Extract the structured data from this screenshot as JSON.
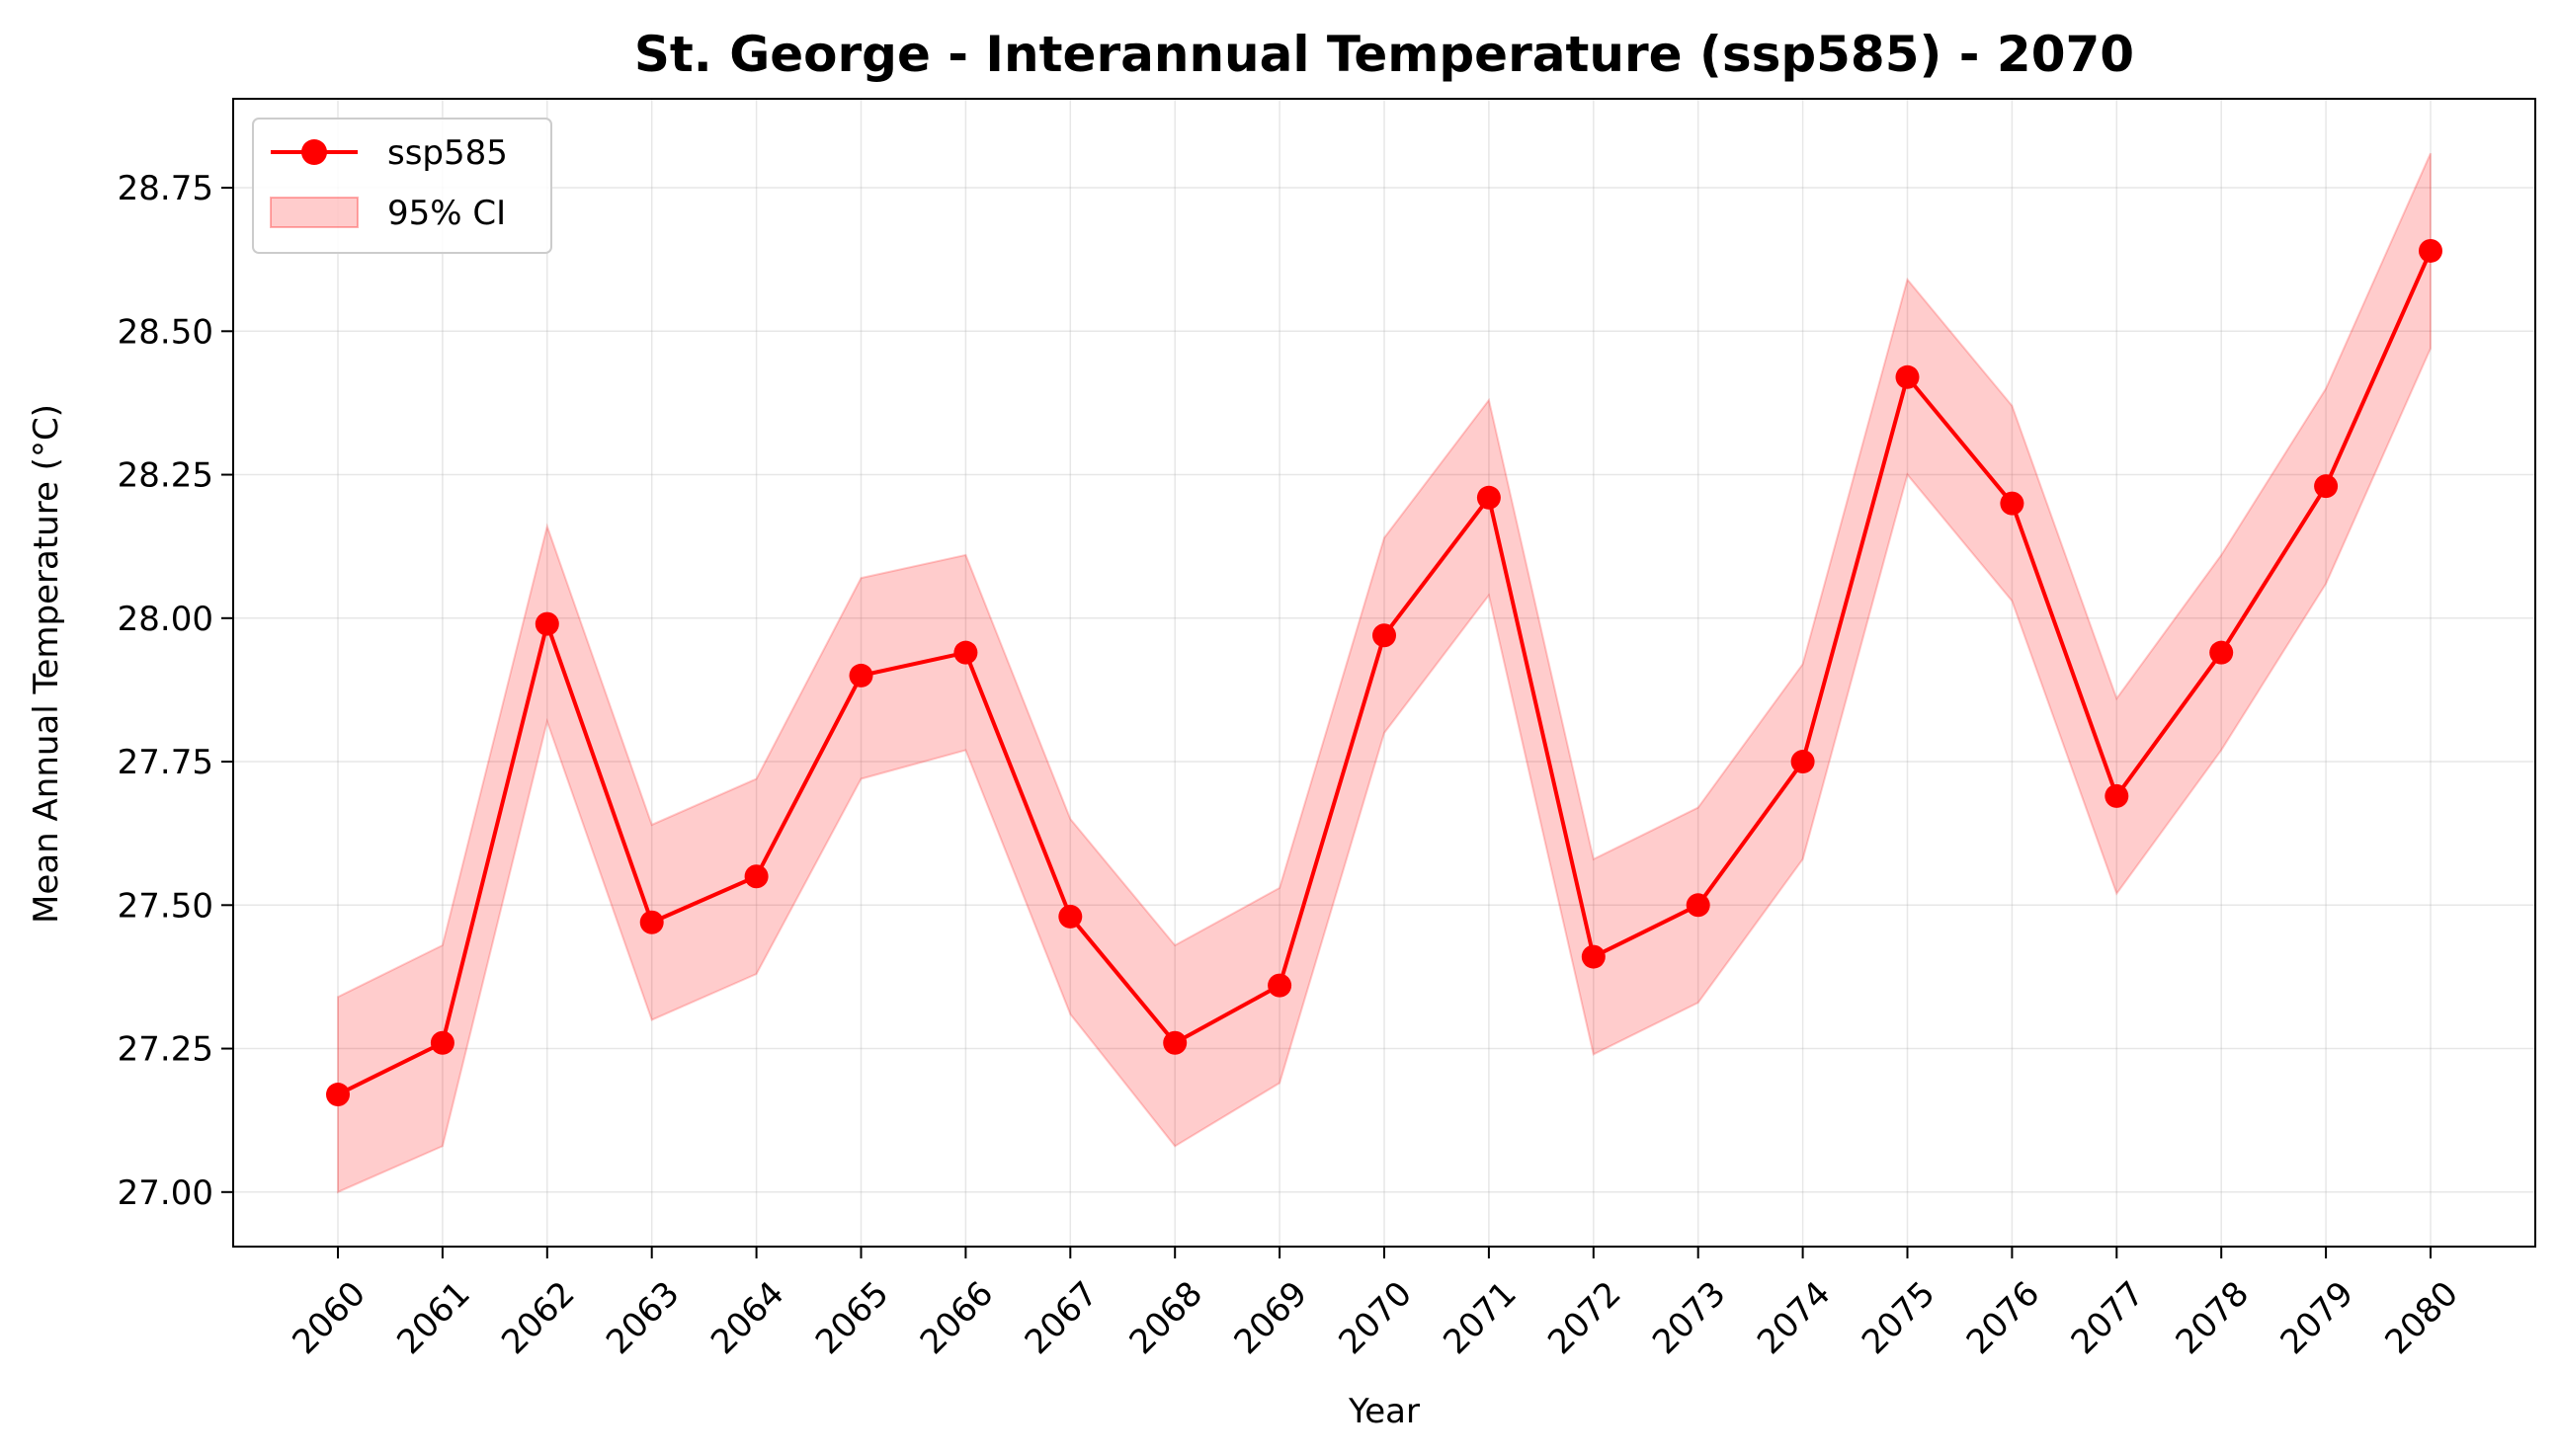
{
  "chart_data": {
    "type": "line",
    "title": "St. George - Interannual Temperature (ssp585) - 2070",
    "xlabel": "Year",
    "ylabel": "Mean Annual Temperature (°C)",
    "x": [
      "2060",
      "2061",
      "2062",
      "2063",
      "2064",
      "2065",
      "2066",
      "2067",
      "2068",
      "2069",
      "2070",
      "2071",
      "2072",
      "2073",
      "2074",
      "2075",
      "2076",
      "2077",
      "2078",
      "2079",
      "2080"
    ],
    "series": [
      {
        "name": "ssp585",
        "color": "#ff0000",
        "values": [
          27.17,
          27.26,
          27.99,
          27.47,
          27.55,
          27.9,
          27.94,
          27.48,
          27.26,
          27.36,
          27.97,
          28.21,
          27.41,
          27.5,
          27.75,
          28.42,
          28.2,
          27.69,
          27.94,
          28.23,
          28.64
        ],
        "ci_lower": [
          27.0,
          27.08,
          27.82,
          27.3,
          27.38,
          27.72,
          27.77,
          27.31,
          27.08,
          27.19,
          27.8,
          28.04,
          27.24,
          27.33,
          27.58,
          28.25,
          28.03,
          27.52,
          27.77,
          28.06,
          28.47
        ],
        "ci_upper": [
          27.34,
          27.43,
          28.16,
          27.64,
          27.72,
          28.07,
          28.11,
          27.65,
          27.43,
          27.53,
          28.14,
          28.38,
          27.58,
          27.67,
          27.92,
          28.59,
          28.37,
          27.86,
          28.11,
          28.4,
          28.81
        ]
      }
    ],
    "band": {
      "name": "95% CI",
      "color": "#ff0000"
    },
    "ylim": [
      26.905,
      28.905
    ],
    "yticks": [
      27.0,
      27.25,
      27.5,
      27.75,
      28.0,
      28.25,
      28.5,
      28.75
    ],
    "ytick_labels": [
      "27.00",
      "27.25",
      "27.50",
      "27.75",
      "28.00",
      "28.25",
      "28.50",
      "28.75"
    ],
    "grid": true,
    "legend_position": "top-left"
  }
}
